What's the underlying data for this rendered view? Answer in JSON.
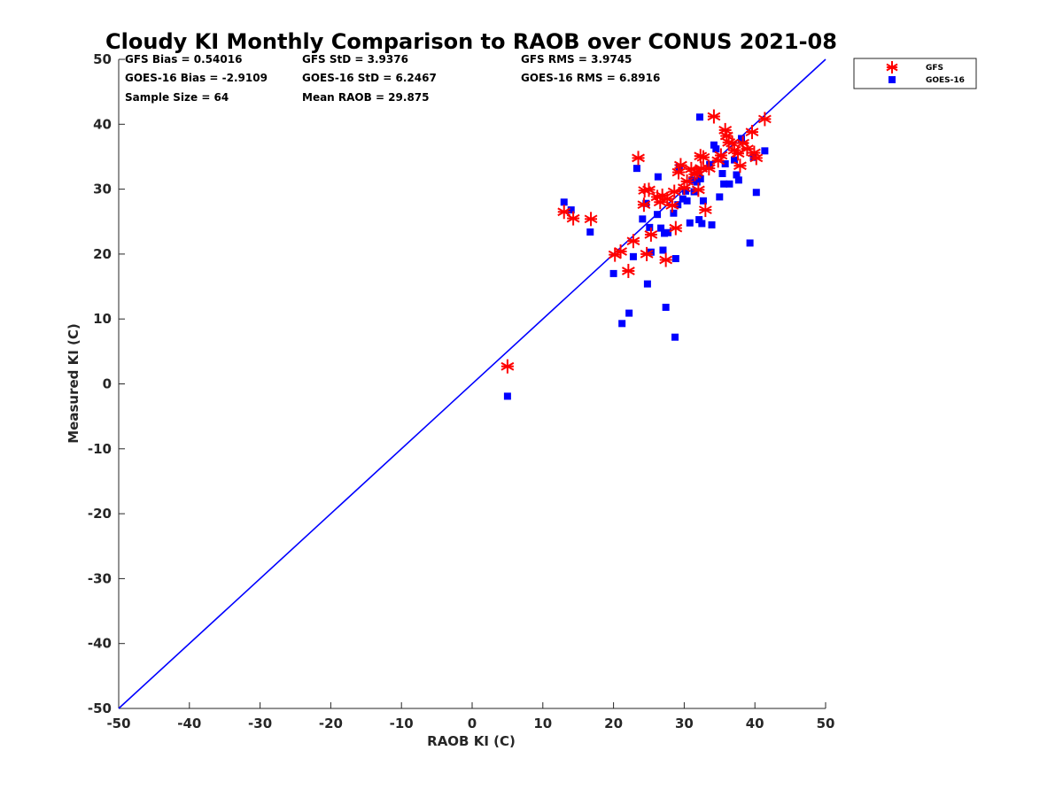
{
  "chart_data": {
    "type": "scatter",
    "title": "Cloudy KI Monthly Comparison to RAOB over CONUS 2021-08",
    "xlabel": "RAOB KI (C)",
    "ylabel": "Measured KI (C)",
    "xlim": [
      -50,
      50
    ],
    "ylim": [
      -50,
      50
    ],
    "xticks": [
      "-50",
      "-40",
      "-30",
      "-20",
      "-10",
      "0",
      "10",
      "20",
      "30",
      "40",
      "50"
    ],
    "yticks": [
      "-50",
      "-40",
      "-30",
      "-20",
      "-10",
      "0",
      "10",
      "20",
      "30",
      "40",
      "50"
    ],
    "grid": false,
    "legend_position": "outside-top-right",
    "reference_line": "y = x",
    "colors": {
      "gfs": "#ff0000",
      "goes": "#0000ff",
      "line": "#0000ff",
      "axis": "#262626"
    },
    "stats": {
      "gfs_bias": "GFS Bias = 0.54016",
      "gfs_std": "GFS StD = 3.9376",
      "gfs_rms": "GFS RMS = 3.9745",
      "goes_bias": "GOES-16 Bias = -2.9109",
      "goes_std": "GOES-16 StD = 6.2467",
      "goes_rms": "GOES-16 RMS = 6.8916",
      "sample_size": "Sample Size = 64",
      "mean_raob": "Mean RAOB = 29.875"
    },
    "series": [
      {
        "name": "GFS",
        "marker": "asterisk",
        "points": [
          [
            5,
            2.7
          ],
          [
            13,
            26.5
          ],
          [
            14.3,
            25.5
          ],
          [
            16.8,
            25.4
          ],
          [
            20.2,
            19.9
          ],
          [
            21,
            20.4
          ],
          [
            22.1,
            17.4
          ],
          [
            22.8,
            22
          ],
          [
            23.5,
            34.8
          ],
          [
            24.3,
            27.6
          ],
          [
            24.4,
            29.8
          ],
          [
            24.7,
            20
          ],
          [
            25,
            29.9
          ],
          [
            25.3,
            23
          ],
          [
            26.2,
            28.8
          ],
          [
            26.6,
            28
          ],
          [
            26.9,
            29
          ],
          [
            27.4,
            19.1
          ],
          [
            27.6,
            28.5
          ],
          [
            28.3,
            27.5
          ],
          [
            28.6,
            29.6
          ],
          [
            28.8,
            24
          ],
          [
            29.2,
            32.6
          ],
          [
            29.5,
            33.7
          ],
          [
            30,
            30.2
          ],
          [
            30.4,
            31.2
          ],
          [
            31,
            33.1
          ],
          [
            31.5,
            32.3
          ],
          [
            31.8,
            32.6
          ],
          [
            32,
            29.9
          ],
          [
            32.3,
            35.1
          ],
          [
            32.4,
            33.2
          ],
          [
            32.7,
            34.9
          ],
          [
            33,
            26.8
          ],
          [
            33.5,
            33.2
          ],
          [
            34.2,
            41.2
          ],
          [
            34.8,
            34.4
          ],
          [
            35.2,
            35.2
          ],
          [
            35.8,
            39.1
          ],
          [
            36,
            38.2
          ],
          [
            36.3,
            37.2
          ],
          [
            36.8,
            37.1
          ],
          [
            37.1,
            36
          ],
          [
            37.6,
            35.5
          ],
          [
            37.9,
            33.6
          ],
          [
            38.3,
            37.1
          ],
          [
            38.9,
            36.2
          ],
          [
            39.6,
            38.8
          ],
          [
            39.9,
            35.6
          ],
          [
            40.2,
            34.8
          ],
          [
            41.4,
            40.8
          ]
        ]
      },
      {
        "name": "GOES-16",
        "marker": "square",
        "points": [
          [
            5,
            -1.9
          ],
          [
            13,
            28
          ],
          [
            14,
            26.8
          ],
          [
            16.7,
            23.4
          ],
          [
            20,
            17
          ],
          [
            21.2,
            9.3
          ],
          [
            22.2,
            10.9
          ],
          [
            22.8,
            19.6
          ],
          [
            23.3,
            33.2
          ],
          [
            24.1,
            25.4
          ],
          [
            24.6,
            27.8
          ],
          [
            24.8,
            15.4
          ],
          [
            25.1,
            24.1
          ],
          [
            25.3,
            20.3
          ],
          [
            26.2,
            26.1
          ],
          [
            26.3,
            31.9
          ],
          [
            26.7,
            24
          ],
          [
            27,
            20.6
          ],
          [
            27.2,
            23.2
          ],
          [
            27.4,
            11.8
          ],
          [
            27.7,
            23.3
          ],
          [
            28.5,
            26.3
          ],
          [
            28.7,
            7.2
          ],
          [
            28.8,
            19.3
          ],
          [
            29.1,
            27.6
          ],
          [
            29.3,
            33.4
          ],
          [
            29.8,
            28.5
          ],
          [
            30.2,
            29.7
          ],
          [
            30.4,
            28.2
          ],
          [
            30.8,
            24.8
          ],
          [
            31.1,
            31.4
          ],
          [
            31.4,
            29.6
          ],
          [
            31.8,
            31.1
          ],
          [
            32.1,
            25.3
          ],
          [
            32.2,
            41.1
          ],
          [
            32.3,
            31.6
          ],
          [
            32.5,
            24.7
          ],
          [
            32.7,
            28.2
          ],
          [
            33.6,
            33.8
          ],
          [
            33.9,
            24.5
          ],
          [
            34.2,
            36.8
          ],
          [
            34.5,
            36.2
          ],
          [
            35,
            28.8
          ],
          [
            35.4,
            32.4
          ],
          [
            35.6,
            30.8
          ],
          [
            35.8,
            33.9
          ],
          [
            36.4,
            30.8
          ],
          [
            37.1,
            34.5
          ],
          [
            37.4,
            32.2
          ],
          [
            37.7,
            31.4
          ],
          [
            38.1,
            37.8
          ],
          [
            39.3,
            21.7
          ],
          [
            39.8,
            34.9
          ],
          [
            40.2,
            29.5
          ],
          [
            41.4,
            35.9
          ]
        ]
      }
    ]
  }
}
